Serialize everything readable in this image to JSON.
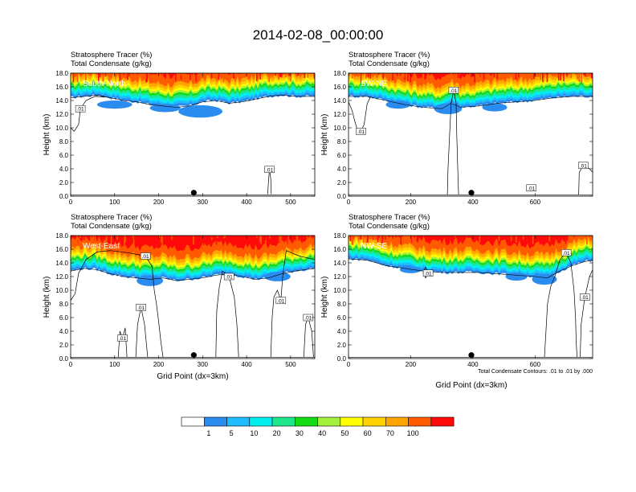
{
  "figure": {
    "title": "2014-02-08_00:00:00",
    "subtitle_line1": "Stratosphere Tracer   (%)",
    "subtitle_line2": "Total Condensate   (g/kg)",
    "xlabel": "Grid Point (dx=3km)",
    "ylabel": "Height (km)",
    "contour_note": "Total Condensate Contours: .01 to .01 by .000",
    "contour_label": ".01"
  },
  "colorbar": {
    "colors": [
      "#ffffff",
      "#2b8cf0",
      "#1fbcff",
      "#00f0f0",
      "#1ee68c",
      "#14dc14",
      "#a5f03c",
      "#ffff00",
      "#ffd200",
      "#ffa500",
      "#ff5a00",
      "#ff0a0a"
    ],
    "labels": [
      "1",
      "5",
      "10",
      "20",
      "30",
      "40",
      "50",
      "60",
      "70",
      "100"
    ]
  },
  "chart_data": [
    {
      "type": "heatmap",
      "panel": "South-North",
      "xlim": [
        0,
        555
      ],
      "ylim": [
        0,
        18
      ],
      "x_ticks": [
        "0",
        "100",
        "200",
        "300",
        "400",
        "500"
      ],
      "y_ticks": [
        "0.0",
        "2.0",
        "4.0",
        "6.0",
        "8.0",
        "10.0",
        "12.0",
        "14.0",
        "16.0",
        "18.0"
      ],
      "marker_x": 280,
      "tropopause_km": [
        [
          0,
          14.4
        ],
        [
          30,
          14.6
        ],
        [
          60,
          14.8
        ],
        [
          90,
          14.4
        ],
        [
          120,
          14.0
        ],
        [
          150,
          13.8
        ],
        [
          180,
          13.4
        ],
        [
          210,
          13.2
        ],
        [
          240,
          13.0
        ],
        [
          270,
          13.2
        ],
        [
          300,
          13.8
        ],
        [
          330,
          14.0
        ],
        [
          360,
          13.6
        ],
        [
          390,
          13.8
        ],
        [
          420,
          14.2
        ],
        [
          450,
          14.6
        ],
        [
          480,
          14.8
        ],
        [
          510,
          14.6
        ],
        [
          555,
          14.6
        ]
      ],
      "blobs": [
        [
          295,
          12.4,
          50,
          0.9
        ],
        [
          215,
          12.9,
          35,
          0.6
        ],
        [
          100,
          13.4,
          40,
          0.6
        ]
      ],
      "contours": [
        {
          "pts": [
            [
              0,
              10.0
            ],
            [
              8,
              9.5
            ],
            [
              18,
              10.5
            ],
            [
              22,
              12.8
            ],
            [
              35,
              14.0
            ],
            [
              55,
              14.6
            ],
            [
              80,
              14.5
            ]
          ]
        },
        {
          "pts": [
            [
              448,
              0.3
            ],
            [
              450,
              2.5
            ],
            [
              452,
              3.9
            ],
            [
              455,
              2.5
            ],
            [
              456,
              0.3
            ]
          ]
        }
      ]
    },
    {
      "type": "heatmap",
      "panel": "SW-NE",
      "xlim": [
        0,
        785
      ],
      "ylim": [
        0,
        18
      ],
      "x_ticks": [
        "0",
        "200",
        "400",
        "600"
      ],
      "y_ticks": [
        "0.0",
        "2.0",
        "4.0",
        "6.0",
        "8.0",
        "10.0",
        "12.0",
        "14.0",
        "16.0",
        "18.0"
      ],
      "marker_x": 395,
      "tropopause_km": [
        [
          0,
          14.6
        ],
        [
          60,
          14.6
        ],
        [
          120,
          14.0
        ],
        [
          180,
          13.4
        ],
        [
          240,
          13.0
        ],
        [
          300,
          12.8
        ],
        [
          330,
          13.6
        ],
        [
          360,
          13.0
        ],
        [
          420,
          13.2
        ],
        [
          480,
          13.6
        ],
        [
          540,
          13.8
        ],
        [
          600,
          14.0
        ],
        [
          660,
          14.4
        ],
        [
          720,
          14.6
        ],
        [
          785,
          14.6
        ]
      ],
      "blobs": [
        [
          320,
          12.8,
          45,
          0.8
        ],
        [
          470,
          13.0,
          40,
          0.6
        ],
        [
          160,
          13.4,
          40,
          0.6
        ]
      ],
      "contours": [
        {
          "pts": [
            [
              0,
              13.8
            ],
            [
              12,
              12.5
            ],
            [
              20,
              11.0
            ],
            [
              28,
              9.8
            ],
            [
              40,
              9.5
            ],
            [
              50,
              10.5
            ],
            [
              60,
              13.5
            ],
            [
              70,
              14.5
            ]
          ]
        },
        {
          "pts": [
            [
              318,
              0.2
            ],
            [
              320,
              4.0
            ],
            [
              325,
              9.0
            ],
            [
              330,
              13.6
            ],
            [
              338,
              15.5
            ],
            [
              346,
              13.6
            ],
            [
              348,
              9.0
            ],
            [
              352,
              3.0
            ],
            [
              354,
              0.2
            ]
          ]
        },
        {
          "pts": [
            [
              580,
              1.2
            ],
            [
              584,
              1.6
            ],
            [
              588,
              1.2
            ],
            [
              584,
              0.9
            ],
            [
              580,
              1.2
            ]
          ]
        },
        {
          "pts": [
            [
              740,
              0.2
            ],
            [
              742,
              3.5
            ],
            [
              755,
              4.5
            ],
            [
              775,
              4.0
            ],
            [
              785,
              3.5
            ]
          ]
        }
      ]
    },
    {
      "type": "heatmap",
      "panel": "West-East",
      "xlim": [
        0,
        555
      ],
      "ylim": [
        0,
        18
      ],
      "x_ticks": [
        "0",
        "100",
        "200",
        "300",
        "400",
        "500"
      ],
      "y_ticks": [
        "0.0",
        "2.0",
        "4.0",
        "6.0",
        "8.0",
        "10.0",
        "12.0",
        "14.0",
        "16.0",
        "18.0"
      ],
      "marker_x": 280,
      "tropopause_km": [
        [
          0,
          12.8
        ],
        [
          30,
          13.2
        ],
        [
          60,
          13.0
        ],
        [
          90,
          12.4
        ],
        [
          120,
          12.0
        ],
        [
          150,
          11.8
        ],
        [
          180,
          11.6
        ],
        [
          210,
          11.8
        ],
        [
          240,
          11.4
        ],
        [
          270,
          11.6
        ],
        [
          300,
          11.8
        ],
        [
          330,
          12.2
        ],
        [
          360,
          12.4
        ],
        [
          390,
          12.0
        ],
        [
          420,
          11.6
        ],
        [
          450,
          11.8
        ],
        [
          480,
          12.4
        ],
        [
          510,
          12.8
        ],
        [
          555,
          13.2
        ]
      ],
      "blobs": [
        [
          180,
          11.4,
          30,
          0.8
        ],
        [
          470,
          12.0,
          30,
          0.7
        ]
      ],
      "contours": [
        {
          "pts": [
            [
              0,
              8.5
            ],
            [
              10,
              9.5
            ],
            [
              18,
              12.5
            ],
            [
              35,
              14.5
            ],
            [
              60,
              15.6
            ],
            [
              90,
              15.8
            ],
            [
              130,
              15.5
            ],
            [
              170,
              15.0
            ],
            [
              185,
              13.5
            ],
            [
              190,
              10.0
            ],
            [
              195,
              8.0
            ],
            [
              200,
              5.5
            ],
            [
              205,
              2.5
            ],
            [
              210,
              0.2
            ]
          ]
        },
        {
          "pts": [
            [
              108,
              0.2
            ],
            [
              112,
              4.0
            ],
            [
              118,
              3.0
            ],
            [
              124,
              4.5
            ],
            [
              128,
              0.2
            ]
          ]
        },
        {
          "pts": [
            [
              148,
              0.2
            ],
            [
              152,
              5.0
            ],
            [
              160,
              7.5
            ],
            [
              168,
              5.0
            ],
            [
              175,
              0.2
            ]
          ]
        },
        {
          "pts": [
            [
              330,
              0.2
            ],
            [
              332,
              7.0
            ],
            [
              338,
              10.5
            ],
            [
              345,
              12.8
            ],
            [
              360,
              12.0
            ],
            [
              372,
              9.0
            ],
            [
              378,
              5.0
            ],
            [
              382,
              0.2
            ]
          ]
        },
        {
          "pts": [
            [
              455,
              0.2
            ],
            [
              458,
              6.0
            ],
            [
              462,
              9.0
            ],
            [
              470,
              10.0
            ],
            [
              478,
              8.5
            ],
            [
              482,
              12.0
            ],
            [
              490,
              15.8
            ],
            [
              520,
              15.0
            ],
            [
              555,
              14.5
            ]
          ]
        },
        {
          "pts": [
            [
              530,
              0.2
            ],
            [
              534,
              5.0
            ],
            [
              540,
              6.0
            ],
            [
              548,
              4.0
            ],
            [
              552,
              0.2
            ]
          ]
        }
      ]
    },
    {
      "type": "heatmap",
      "panel": "NW-SE",
      "xlim": [
        0,
        785
      ],
      "ylim": [
        0,
        18
      ],
      "x_ticks": [
        "0",
        "200",
        "400",
        "600"
      ],
      "y_ticks": [
        "0.0",
        "2.0",
        "4.0",
        "6.0",
        "8.0",
        "10.0",
        "12.0",
        "14.0",
        "16.0",
        "18.0"
      ],
      "marker_x": 395,
      "tropopause_km": [
        [
          0,
          14.6
        ],
        [
          60,
          14.4
        ],
        [
          120,
          13.6
        ],
        [
          180,
          13.2
        ],
        [
          240,
          12.8
        ],
        [
          300,
          12.6
        ],
        [
          360,
          12.6
        ],
        [
          420,
          12.6
        ],
        [
          480,
          12.4
        ],
        [
          540,
          12.2
        ],
        [
          600,
          12.0
        ],
        [
          640,
          11.8
        ],
        [
          680,
          12.8
        ],
        [
          720,
          13.6
        ],
        [
          760,
          14.2
        ],
        [
          785,
          14.4
        ]
      ],
      "blobs": [
        [
          630,
          11.6,
          40,
          0.8
        ],
        [
          540,
          12.0,
          35,
          0.6
        ],
        [
          200,
          13.0,
          35,
          0.5
        ]
      ],
      "contours": [
        {
          "pts": [
            [
              240,
              12.5
            ],
            [
              248,
              13.4
            ],
            [
              256,
              12.5
            ],
            [
              248,
              11.8
            ],
            [
              240,
              12.5
            ]
          ]
        },
        {
          "pts": [
            [
              630,
              0.2
            ],
            [
              635,
              4.0
            ],
            [
              640,
              8.0
            ],
            [
              650,
              10.5
            ],
            [
              665,
              12.2
            ],
            [
              680,
              14.5
            ],
            [
              700,
              15.5
            ],
            [
              715,
              14.0
            ],
            [
              725,
              10.0
            ],
            [
              730,
              6.0
            ],
            [
              732,
              2.5
            ],
            [
              735,
              0.2
            ]
          ]
        },
        {
          "pts": [
            [
              745,
              0.2
            ],
            [
              748,
              5.0
            ],
            [
              760,
              9.0
            ],
            [
              775,
              12.0
            ],
            [
              785,
              13.0
            ]
          ]
        }
      ]
    }
  ]
}
